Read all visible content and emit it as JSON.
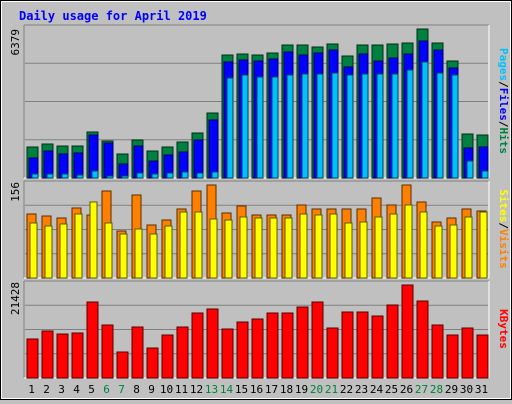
{
  "chart_data": [
    {
      "type": "bar",
      "panel": "pages-files-hits",
      "title": "Daily usage for April 2019",
      "ymax_label": "6379",
      "ylabel_parts": [
        "Pages",
        "Files",
        "Hits"
      ],
      "categories": [
        "1",
        "2",
        "3",
        "4",
        "5",
        "6",
        "7",
        "8",
        "9",
        "10",
        "11",
        "12",
        "13",
        "14",
        "15",
        "16",
        "17",
        "18",
        "19",
        "20",
        "21",
        "22",
        "23",
        "24",
        "25",
        "26",
        "27",
        "28",
        "29",
        "30",
        "31"
      ],
      "weekend_days": [
        "6",
        "7",
        "13",
        "14",
        "20",
        "21",
        "27",
        "28"
      ],
      "ylim": [
        0,
        6379
      ],
      "series": [
        {
          "name": "Hits",
          "color": "#008040",
          "values": [
            1335,
            1440,
            1385,
            1385,
            1982,
            1564,
            1014,
            1645,
            1148,
            1335,
            1538,
            1911,
            2790,
            5246,
            5296,
            5245,
            5370,
            5686,
            5701,
            5624,
            5720,
            5224,
            5686,
            5686,
            5720,
            5780,
            6379,
            5779,
            5016,
            1900,
            1860
          ]
        },
        {
          "name": "Files",
          "color": "#0000ff",
          "values": [
            860,
            1160,
            1040,
            1080,
            1830,
            1500,
            620,
            1370,
            740,
            1000,
            1120,
            1640,
            2470,
            4960,
            5040,
            5016,
            5108,
            5376,
            5272,
            5340,
            5463,
            4755,
            5322,
            5000,
            5150,
            5322,
            5846,
            5466,
            4706,
            1300,
            1330
          ]
        },
        {
          "name": "Pages",
          "color": "#00c0ff",
          "values": [
            156,
            177,
            163,
            134,
            308,
            102,
            68,
            218,
            156,
            210,
            248,
            204,
            259,
            4286,
            4397,
            4342,
            4342,
            4397,
            4452,
            4452,
            4507,
            4397,
            4452,
            4452,
            4452,
            4612,
            4956,
            4507,
            4397,
            743,
            306
          ]
        }
      ]
    },
    {
      "type": "bar",
      "panel": "sites-visits",
      "ymax_label": "156",
      "ylabel_parts": [
        "Sites",
        "Visits"
      ],
      "ylim": [
        0,
        156
      ],
      "series": [
        {
          "name": "Visits",
          "color": "#ff8000",
          "values": [
            107,
            104,
            100,
            117,
            106,
            146,
            78,
            139,
            89,
            97,
            116,
            146,
            156,
            109,
            121,
            105,
            105,
            105,
            122,
            115,
            116,
            115,
            116,
            135,
            122,
            156,
            127,
            94,
            101,
            115,
            112
          ]
        },
        {
          "name": "Sites",
          "color": "#ffff00",
          "values": [
            92,
            88,
            90,
            107,
            128,
            92,
            74,
            83,
            74,
            88,
            110,
            111,
            99,
            97,
            102,
            101,
            101,
            101,
            107,
            105,
            107,
            92,
            94,
            103,
            108,
            122,
            111,
            87,
            89,
            103,
            111
          ]
        }
      ]
    },
    {
      "type": "bar",
      "panel": "kbytes",
      "ymax_label": "21428",
      "ylabel_parts": [
        "KBytes"
      ],
      "ylim": [
        0,
        21428
      ],
      "series": [
        {
          "name": "KBytes",
          "color": "#ff0000",
          "values": [
            9100,
            10800,
            10100,
            10400,
            17600,
            12200,
            5900,
            11700,
            6800,
            9800,
            11850,
            14900,
            16000,
            11200,
            12800,
            13600,
            14900,
            15000,
            16300,
            17400,
            11600,
            15200,
            15100,
            14200,
            16900,
            21428,
            17800,
            12300,
            9900,
            11500,
            9800
          ]
        }
      ]
    }
  ]
}
